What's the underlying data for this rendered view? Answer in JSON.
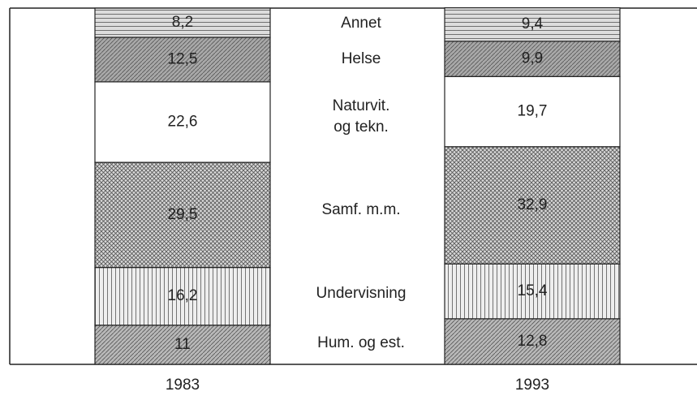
{
  "chart_data": {
    "type": "stacked-bar",
    "categories": [
      "1983",
      "1993"
    ],
    "ylim": [
      0,
      100
    ],
    "series": [
      {
        "name": "Hum. og est.",
        "color": "#b8b8b8",
        "pattern": "diagonal",
        "values": [
          11,
          12.8
        ],
        "value_labels": [
          "11",
          "12,8"
        ]
      },
      {
        "name": "Undervisning",
        "color": "#eeeeee",
        "pattern": "vertical",
        "values": [
          16.2,
          15.4
        ],
        "value_labels": [
          "16,2",
          "15,4"
        ]
      },
      {
        "name": "Samf. m.m.",
        "color": "#d8d8d8",
        "pattern": "cross",
        "values": [
          29.5,
          32.9
        ],
        "value_labels": [
          "29,5",
          "32,9"
        ]
      },
      {
        "name": "Naturvit.\nog tekn.",
        "color": "#ffffff",
        "pattern": "none",
        "values": [
          22.6,
          19.7
        ],
        "value_labels": [
          "22,6",
          "19,7"
        ]
      },
      {
        "name": "Helse",
        "color": "#a8a8a8",
        "pattern": "diagonal",
        "values": [
          12.5,
          9.9
        ],
        "value_labels": [
          "12,5",
          "9,9"
        ]
      },
      {
        "name": "Annet",
        "color": "#dddddd",
        "pattern": "horizontal",
        "values": [
          8.2,
          9.4
        ],
        "value_labels": [
          "8,2",
          "9,4"
        ]
      }
    ]
  }
}
